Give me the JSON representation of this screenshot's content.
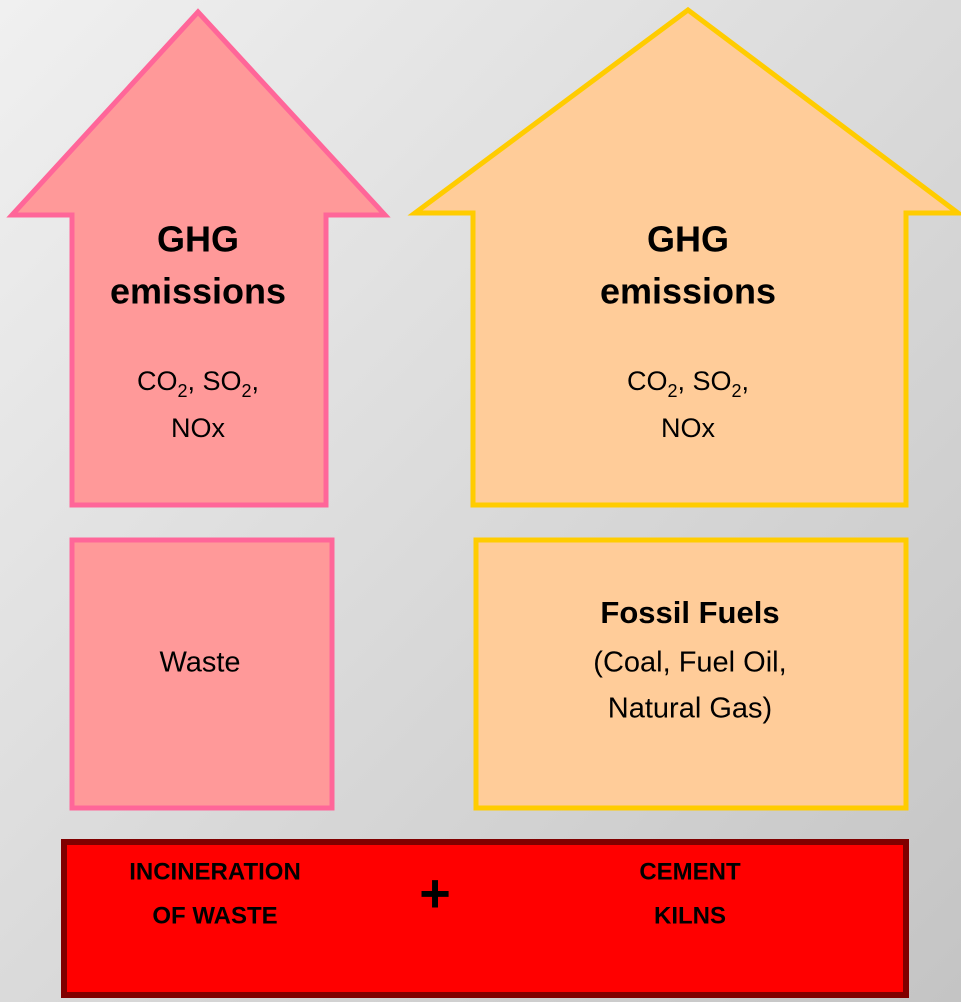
{
  "left_arrow": {
    "title": [
      "GHG",
      "emissions"
    ],
    "formula": [
      "CO",
      "2",
      ", SO",
      "2",
      ",",
      "NOx"
    ]
  },
  "right_arrow": {
    "title": [
      "GHG",
      "emissions"
    ],
    "formula": [
      "CO",
      "2",
      ", SO",
      "2",
      ",",
      "NOx"
    ]
  },
  "left_box": {
    "label": "Waste"
  },
  "right_box": {
    "title": "Fossil Fuels",
    "lines": [
      "(Coal, Fuel Oil,",
      "Natural Gas)"
    ]
  },
  "base": {
    "left": [
      "INCINERATION",
      "OF WASTE"
    ],
    "plus": "+",
    "right": [
      "CEMENT",
      "KILNS"
    ]
  }
}
